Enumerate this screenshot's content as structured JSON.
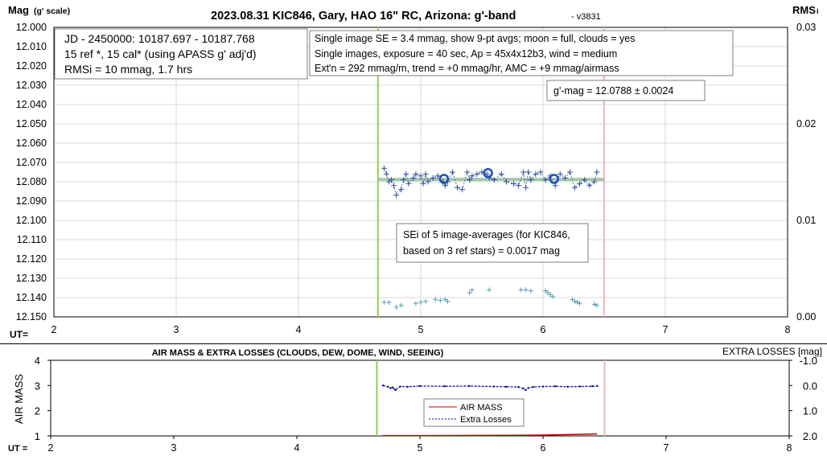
{
  "colors": {
    "grid": "#d9d9d9",
    "frame": "#000000",
    "green_line": "#92d050",
    "red_line": "#f4b6b6",
    "data_blue": "#2e4e9a",
    "avg_blue": "#1f4eb4",
    "trend": "#9dc3a0",
    "rms_teal": "#5b9bb5",
    "airmass_red": "#c00000",
    "losses_blue": "#00008b"
  },
  "chart_data": [
    {
      "type": "scatter",
      "title": "2023.08.31 KIC846, Gary, HAO 16\" RC, Arizona: g'-band",
      "version": "- v3831",
      "ylabel": "Mag",
      "ylabel_unit": "(g' scale)",
      "y2label": "RMS",
      "y2label_sub": "i",
      "xlabel": "UT=",
      "xlim": [
        2,
        8
      ],
      "ylim": [
        12.15,
        12.0
      ],
      "y2lim": [
        0,
        0.03
      ],
      "x_ticks": [
        "2",
        "3",
        "4",
        "5",
        "6",
        "7",
        "8"
      ],
      "y_ticks": [
        "12.000",
        "12.010",
        "12.020",
        "12.030",
        "12.040",
        "12.050",
        "12.060",
        "12.070",
        "12.080",
        "12.090",
        "12.100",
        "12.110",
        "12.120",
        "12.130",
        "12.140",
        "12.150"
      ],
      "y2_ticks": [
        "0.03",
        "0.02",
        "0.01",
        "0.00"
      ],
      "grid": true,
      "vertical_markers": [
        4.65,
        6.5
      ],
      "trend_line": {
        "x": [
          4.65,
          6.5
        ],
        "y": [
          12.0788,
          12.0788
        ]
      },
      "annotations": [
        {
          "lines": [
            "JD - 2450000: 10187.697 - 10187.768",
            "15 ref *, 15 cal* (using APASS g' adj'd)",
            "RMSi = 10 mmag, 1.7 hrs"
          ]
        },
        {
          "lines": [
            "Single image SE = 3.4 mmag, show  9-pt avgs; moon = full, clouds = yes",
            "Single images, exposure = 40 sec, Ap = 45x4x12b3, wind = medium",
            "Ext'n = 292 mmag/m, trend = +0 mmag/hr, AMC = +9 mmag/airmass"
          ]
        },
        {
          "lines": [
            "g'-mag = 12.0788 ± 0.0024"
          ]
        },
        {
          "lines": [
            "SEi of 5 image-averages (for KIC846,",
            "based on 3 ref stars) = 0.0017 mag"
          ]
        }
      ],
      "series": [
        {
          "x": [
            4.7,
            4.72,
            4.74,
            4.76,
            4.78,
            4.8,
            4.84,
            4.86,
            4.88,
            4.9,
            4.94,
            4.96,
            5.0,
            5.02,
            5.04,
            5.06,
            5.1,
            5.14,
            5.18,
            5.2,
            5.22,
            5.26,
            5.3,
            5.34,
            5.38,
            5.4,
            5.42,
            5.46,
            5.5,
            5.54,
            5.56,
            5.6,
            5.66,
            5.7,
            5.76,
            5.8,
            5.84,
            5.86,
            5.88,
            5.9,
            5.94,
            5.98,
            6.02,
            6.06,
            6.1,
            6.14,
            6.18,
            6.22,
            6.26,
            6.3,
            6.34,
            6.38,
            6.42,
            6.44
          ],
          "y": [
            12.073,
            12.076,
            12.08,
            12.079,
            12.082,
            12.087,
            12.084,
            12.079,
            12.076,
            12.081,
            12.078,
            12.076,
            12.077,
            12.081,
            12.076,
            12.08,
            12.078,
            12.077,
            12.08,
            12.082,
            12.08,
            12.075,
            12.083,
            12.084,
            12.075,
            12.079,
            12.077,
            12.076,
            12.075,
            12.076,
            12.078,
            12.079,
            12.076,
            12.08,
            12.081,
            12.082,
            12.075,
            12.083,
            12.075,
            12.079,
            12.076,
            12.075,
            12.079,
            12.077,
            12.082,
            12.076,
            12.078,
            12.075,
            12.083,
            12.081,
            12.079,
            12.082,
            12.08,
            12.075
          ]
        },
        {
          "x": [
            5.19,
            5.55,
            6.09
          ],
          "y": [
            12.0785,
            12.0755,
            12.0785
          ]
        },
        {
          "x": [
            4.7,
            4.74,
            4.8,
            4.84,
            4.96,
            5.0,
            5.04,
            5.12,
            5.16,
            5.2,
            5.22,
            5.4,
            5.42,
            5.56,
            5.82,
            5.86,
            5.9,
            6.02,
            6.04,
            6.06,
            6.08,
            6.24,
            6.26,
            6.28,
            6.3,
            6.42,
            6.44
          ],
          "y2": [
            0.0015,
            0.0015,
            0.001,
            0.0012,
            0.0014,
            0.0015,
            0.0016,
            0.0018,
            0.0017,
            0.0018,
            0.0016,
            0.0025,
            0.0028,
            0.0028,
            0.0028,
            0.0028,
            0.0027,
            0.0027,
            0.0025,
            0.0023,
            0.0021,
            0.0018,
            0.0016,
            0.0015,
            0.0014,
            0.0013,
            0.0012
          ]
        }
      ]
    },
    {
      "type": "line",
      "title": "AIR MASS & EXTRA LOSSES (CLOUDS, DEW, DOME, WIND, SEEING)",
      "ylabel": "AIR MASS",
      "y2label": "EXTRA LOSSES [mag]",
      "xlabel": "UT =",
      "xlim": [
        2,
        8
      ],
      "ylim": [
        1,
        4
      ],
      "y2lim": [
        2.0,
        -1.0
      ],
      "x_ticks": [
        "2",
        "3",
        "4",
        "5",
        "6",
        "7",
        "8"
      ],
      "y_ticks": [
        "1",
        "2",
        "3",
        "4"
      ],
      "y2_ticks": [
        "-1.0",
        "0.0",
        "1.0",
        "2.0"
      ],
      "vertical_markers": [
        4.65,
        6.5
      ],
      "legend": "center",
      "series": [
        {
          "name": "AIR MASS",
          "x": [
            4.7,
            5.0,
            5.5,
            6.0,
            6.2,
            6.44
          ],
          "y": [
            1.01,
            1.01,
            1.02,
            1.03,
            1.05,
            1.08
          ]
        },
        {
          "name": "Extra Losses",
          "x": [
            4.7,
            4.74,
            4.76,
            4.78,
            4.8,
            4.84,
            4.9,
            5.0,
            5.2,
            5.4,
            5.6,
            5.7,
            5.8,
            5.84,
            5.86,
            5.88,
            5.92,
            6.0,
            6.1,
            6.2,
            6.3,
            6.4,
            6.44
          ],
          "y2": [
            0.0,
            0.05,
            0.1,
            0.08,
            0.18,
            0.04,
            0.05,
            0.02,
            0.03,
            0.02,
            0.04,
            0.05,
            0.06,
            0.12,
            0.18,
            0.1,
            0.06,
            0.04,
            0.03,
            0.05,
            0.04,
            0.03,
            0.02
          ]
        }
      ]
    }
  ]
}
